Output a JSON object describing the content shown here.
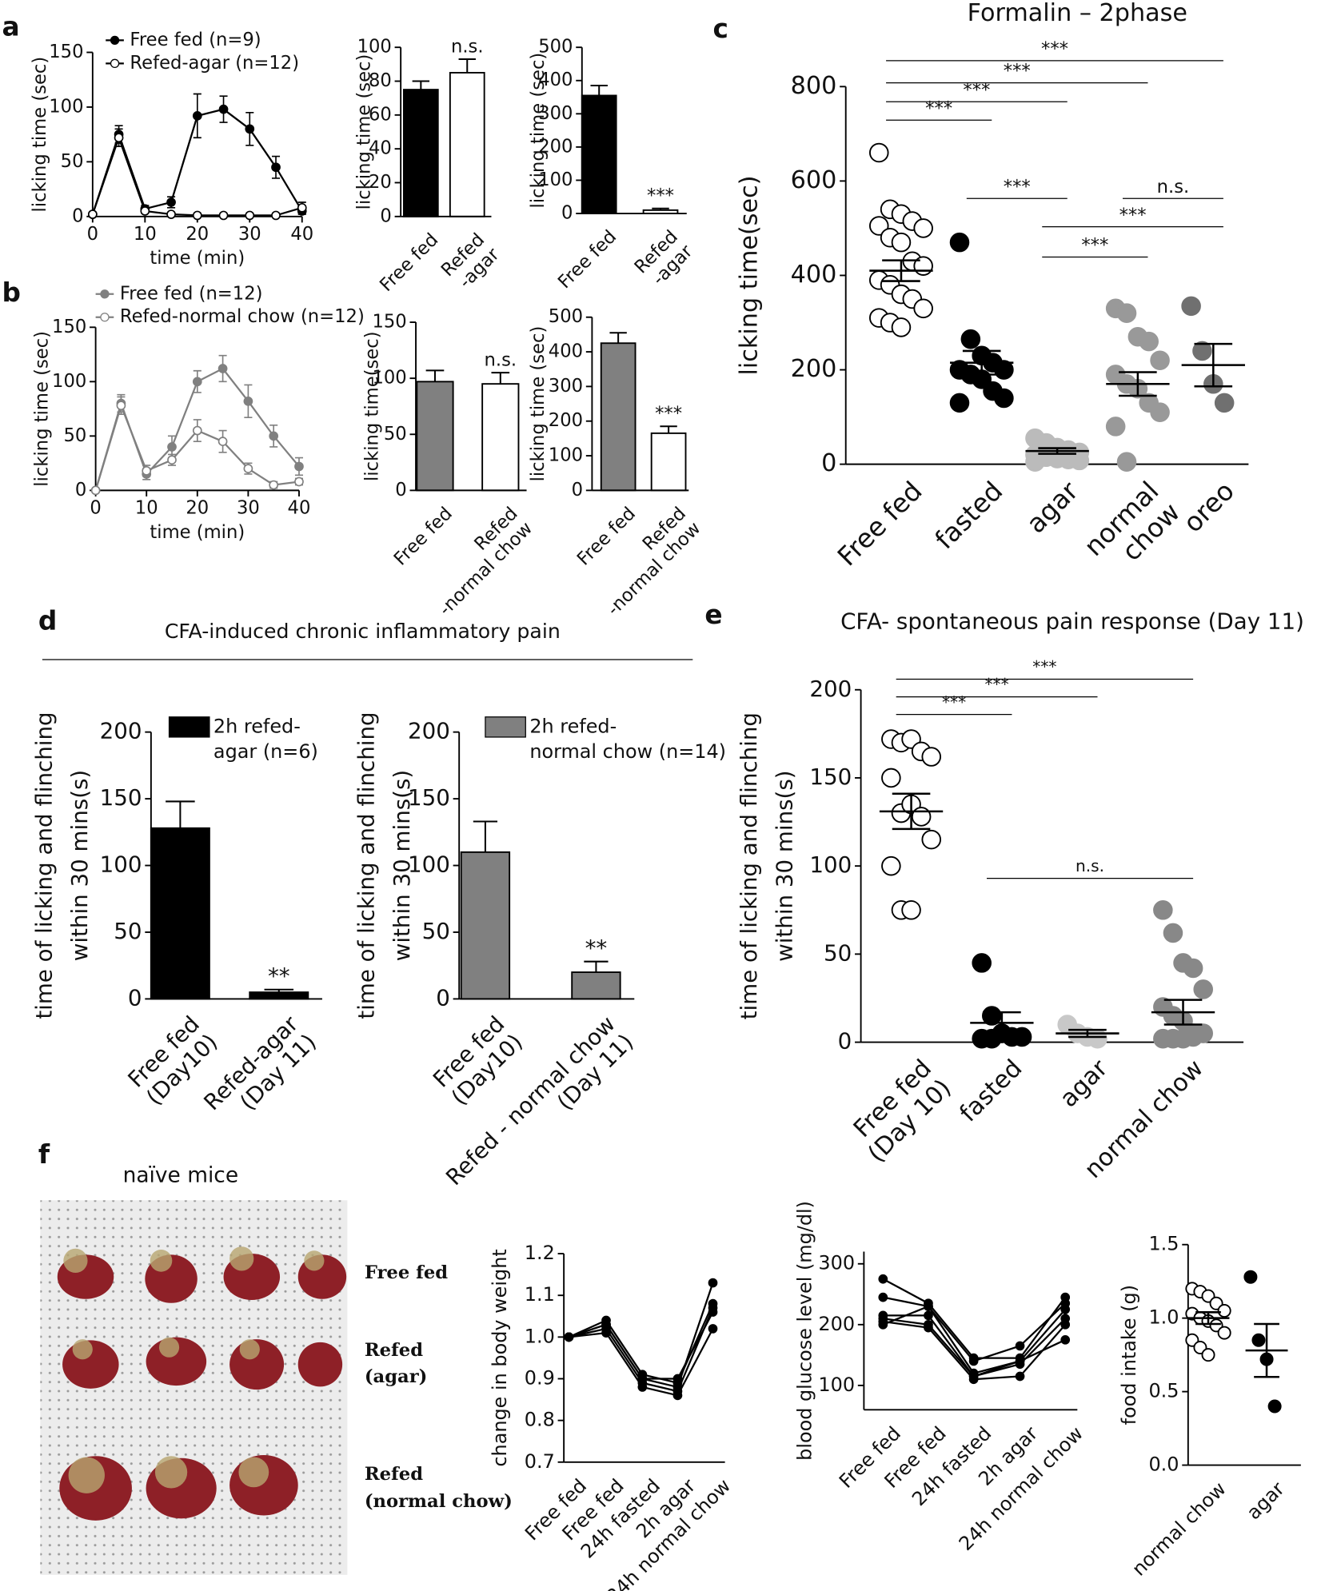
{
  "chart_data": [
    {
      "panel": "a",
      "type": "line",
      "x": [
        0,
        5,
        10,
        15,
        20,
        25,
        30,
        35,
        40
      ],
      "xlim": [
        0,
        40
      ],
      "xticks": [
        0,
        10,
        20,
        30,
        40
      ],
      "ylim": [
        0,
        150
      ],
      "yticks": [
        0,
        50,
        100,
        150
      ],
      "xlabel": "time (min)",
      "ylabel": "licking time (sec)",
      "color": "#000000",
      "series": [
        {
          "name": "Free fed (n=9)",
          "marker": "filled",
          "values": [
            2,
            75,
            7,
            13,
            92,
            98,
            80,
            45,
            5
          ],
          "errors": [
            0,
            8,
            3,
            5,
            20,
            12,
            15,
            10,
            3
          ]
        },
        {
          "name": "Refed-agar (n=12)",
          "marker": "open",
          "values": [
            2,
            72,
            5,
            2,
            1,
            1,
            1,
            1,
            8
          ],
          "errors": [
            0,
            8,
            2,
            0,
            0,
            0,
            0,
            0,
            5
          ]
        }
      ]
    },
    {
      "type": "bar",
      "categories": [
        "Free fed",
        [
          "Refed",
          "-agar"
        ]
      ],
      "values": [
        75,
        85
      ],
      "errors": [
        5,
        8
      ],
      "colors": [
        "#000000",
        "#ffffff"
      ],
      "ylim": [
        0,
        100
      ],
      "yticks": [
        0,
        20,
        40,
        60,
        80,
        100
      ],
      "ylabel": "licking time (sec)",
      "annotations": [
        {
          "text": "n.s.",
          "category": 1
        }
      ]
    },
    {
      "type": "bar",
      "categories": [
        "Free fed",
        [
          "Refed",
          "-agar"
        ]
      ],
      "values": [
        355,
        10
      ],
      "errors": [
        30,
        5
      ],
      "colors": [
        "#000000",
        "#ffffff"
      ],
      "ylim": [
        0,
        500
      ],
      "yticks": [
        0,
        100,
        200,
        300,
        400,
        500
      ],
      "ylabel": "licking time (sec)",
      "annotations": [
        {
          "text": "***",
          "category": 1
        }
      ]
    },
    {
      "panel": "b",
      "type": "line",
      "x": [
        0,
        5,
        10,
        15,
        20,
        25,
        30,
        35,
        40
      ],
      "xlim": [
        0,
        40
      ],
      "xticks": [
        0,
        10,
        20,
        30,
        40
      ],
      "ylim": [
        0,
        150
      ],
      "yticks": [
        0,
        50,
        100,
        150
      ],
      "xlabel": "time (min)",
      "ylabel": "licking time (sec)",
      "color": "#808080",
      "series": [
        {
          "name": "Free fed (n=12)",
          "marker": "filled",
          "values": [
            0,
            80,
            15,
            40,
            100,
            112,
            82,
            50,
            22
          ],
          "errors": [
            0,
            8,
            5,
            10,
            10,
            12,
            15,
            10,
            8
          ]
        },
        {
          "name": "Refed-normal chow (n=12)",
          "marker": "open",
          "values": [
            0,
            78,
            18,
            28,
            55,
            45,
            20,
            5,
            8
          ],
          "errors": [
            0,
            8,
            5,
            5,
            10,
            10,
            5,
            3,
            3
          ]
        }
      ]
    },
    {
      "type": "bar",
      "categories": [
        "Free fed",
        [
          "Refed",
          "-normal chow"
        ]
      ],
      "values": [
        97,
        95
      ],
      "errors": [
        10,
        10
      ],
      "colors": [
        "#808080",
        "#ffffff"
      ],
      "ylim": [
        0,
        150
      ],
      "yticks": [
        0,
        50,
        100,
        150
      ],
      "ylabel": "licking time(sec)",
      "annotations": [
        {
          "text": "n.s.",
          "category": 1
        }
      ]
    },
    {
      "type": "bar",
      "categories": [
        "Free fed",
        [
          "Refed",
          "-normal chow"
        ]
      ],
      "values": [
        425,
        165
      ],
      "errors": [
        30,
        20
      ],
      "colors": [
        "#808080",
        "#ffffff"
      ],
      "ylim": [
        0,
        500
      ],
      "yticks": [
        0,
        100,
        200,
        300,
        400,
        500
      ],
      "ylabel": "licking time (sec)",
      "annotations": [
        {
          "text": "***",
          "category": 1
        }
      ]
    },
    {
      "panel": "c",
      "type": "dot",
      "title": "Formalin – 2phase",
      "categories": [
        "Free fed",
        "fasted",
        "agar",
        [
          "normal",
          "chow"
        ],
        "oreo"
      ],
      "ylim": [
        0,
        800
      ],
      "yticks": [
        0,
        200,
        400,
        600,
        800
      ],
      "ylabel": "licking time(sec)",
      "marker_colors": [
        "#ffffff",
        "#000000",
        "#bbbbbb",
        "#999999",
        "#707070"
      ],
      "points": [
        [
          660,
          540,
          530,
          515,
          500,
          505,
          480,
          470,
          430,
          420,
          390,
          380,
          360,
          350,
          330,
          310,
          300,
          290
        ],
        [
          470,
          265,
          230,
          215,
          200,
          200,
          190,
          180,
          155,
          140,
          130
        ],
        [
          55,
          45,
          35,
          30,
          25,
          20,
          15,
          12,
          10,
          8,
          5
        ],
        [
          330,
          320,
          270,
          260,
          220,
          190,
          170,
          160,
          130,
          110,
          80,
          5
        ],
        [
          335,
          240,
          170,
          130
        ]
      ],
      "means": [
        410,
        215,
        28,
        170,
        210
      ],
      "sems": [
        22,
        25,
        6,
        25,
        45
      ],
      "brackets": [
        {
          "text": "***",
          "from": 0,
          "to": 4,
          "y": 855
        },
        {
          "text": "***",
          "from": 0,
          "to": 3,
          "y": 808
        },
        {
          "text": "***",
          "from": 0,
          "to": 2,
          "y": 768
        },
        {
          "text": "***",
          "from": 0,
          "to": 1,
          "y": 729
        },
        {
          "text": "***",
          "from": 1,
          "to": 2,
          "y": 563
        },
        {
          "text": "n.s.",
          "from": 3,
          "to": 4,
          "y": 563
        },
        {
          "text": "***",
          "from": 2,
          "to": 4,
          "y": 503
        },
        {
          "text": "***",
          "from": 2,
          "to": 3,
          "y": 439
        }
      ]
    },
    {
      "panel": "d",
      "title": "CFA-induced chronic inflammatory pain",
      "type": "bar",
      "categories": [
        [
          "Free fed",
          "(Day10)"
        ],
        [
          "Refed-agar",
          "(Day 11)"
        ]
      ],
      "values": [
        128,
        5
      ],
      "errors": [
        20,
        2
      ],
      "colors": [
        "#000000",
        "#000000"
      ],
      "ylim": [
        0,
        200
      ],
      "yticks": [
        0,
        50,
        100,
        150,
        200
      ],
      "ylabel": [
        "time of licking and flinching",
        "within 30 mins(s)"
      ],
      "legend": [
        "2h refed-",
        "agar (n=6)"
      ],
      "annotations": [
        {
          "text": "**",
          "category": 1
        }
      ]
    },
    {
      "type": "bar",
      "categories": [
        [
          "Free fed",
          "(Day10)"
        ],
        [
          "Refed - normal chow",
          "(Day 11)"
        ]
      ],
      "values": [
        110,
        20
      ],
      "errors": [
        23,
        8
      ],
      "colors": [
        "#808080",
        "#808080"
      ],
      "ylim": [
        0,
        200
      ],
      "yticks": [
        0,
        50,
        100,
        150,
        200
      ],
      "ylabel": [
        "time of licking and flinching",
        "within 30 mins(s)"
      ],
      "legend": [
        "2h refed-",
        "normal chow (n=14)"
      ],
      "annotations": [
        {
          "text": "**",
          "category": 1
        }
      ]
    },
    {
      "panel": "e",
      "type": "dot",
      "title": "CFA- spontaneous pain response (Day 11)",
      "categories": [
        [
          "Free fed",
          "(Day 10)"
        ],
        "fasted",
        "agar",
        "normal chow"
      ],
      "ylim": [
        0,
        200
      ],
      "yticks": [
        0,
        50,
        100,
        150,
        200
      ],
      "ylabel": [
        "time of licking and flinching",
        "within 30 mins(s)"
      ],
      "marker_colors": [
        "#ffffff",
        "#000000",
        "#c8c8c8",
        "#888888"
      ],
      "points": [
        [
          172,
          170,
          172,
          165,
          162,
          150,
          130,
          135,
          128,
          115,
          100,
          75,
          75
        ],
        [
          45,
          15,
          5,
          3,
          3,
          2,
          2
        ],
        [
          10,
          5,
          3,
          2
        ],
        [
          75,
          62,
          45,
          42,
          30,
          20,
          15,
          12,
          5,
          5,
          2,
          2,
          2,
          3
        ]
      ],
      "means": [
        131,
        11,
        5,
        17
      ],
      "sems": [
        10,
        6,
        2,
        7
      ],
      "brackets": [
        {
          "text": "***",
          "from": 0,
          "to": 3,
          "y": 206
        },
        {
          "text": "***",
          "from": 0,
          "to": 2,
          "y": 196
        },
        {
          "text": "***",
          "from": 0,
          "to": 1,
          "y": 186
        },
        {
          "text": "n.s.",
          "from": 1,
          "to": 3,
          "y": 93
        }
      ]
    },
    {
      "panel": "f",
      "type": "line",
      "categories": [
        "Free fed",
        "Free fed",
        "24h fasted",
        "2h agar",
        "24h normal chow"
      ],
      "ylim": [
        0.7,
        1.2
      ],
      "yticks": [
        0.7,
        0.8,
        0.9,
        {
          "value": 1,
          "label": "1.0"
        },
        1.1,
        1.2
      ],
      "ylabel": "change in body weight",
      "color": "#000000",
      "series": [
        {
          "marker": "filled",
          "values": [
            1.0,
            1.03,
            0.9,
            0.88,
            1.13
          ]
        },
        {
          "marker": "filled",
          "values": [
            1.0,
            1.04,
            0.91,
            0.89,
            1.08
          ]
        },
        {
          "marker": "filled",
          "values": [
            1.0,
            1.02,
            0.89,
            0.87,
            1.07
          ]
        },
        {
          "marker": "filled",
          "values": [
            1.0,
            1.01,
            0.88,
            0.86,
            1.02
          ]
        },
        {
          "marker": "filled",
          "values": [
            1.0,
            1.03,
            0.9,
            0.9,
            1.06
          ]
        }
      ]
    },
    {
      "type": "line",
      "categories": [
        "Free fed",
        "Free fed",
        "24h fasted",
        "2h agar",
        "24h normal chow"
      ],
      "ylim": [
        60,
        320
      ],
      "yticks": [
        100,
        200,
        300
      ],
      "ylabel": "blood glucose level (mg/dl)",
      "color": "#000000",
      "series": [
        {
          "marker": "filled",
          "values": [
            275,
            235,
            145,
            145,
            245
          ]
        },
        {
          "marker": "filled",
          "values": [
            245,
            230,
            140,
            165,
            235
          ]
        },
        {
          "marker": "filled",
          "values": [
            215,
            215,
            115,
            140,
            225
          ]
        },
        {
          "marker": "filled",
          "values": [
            210,
            200,
            115,
            135,
            210
          ]
        },
        {
          "marker": "filled",
          "values": [
            205,
            195,
            110,
            115,
            200
          ]
        },
        {
          "marker": "filled",
          "values": [
            200,
            230,
            120,
            140,
            175
          ]
        }
      ]
    },
    {
      "type": "dot",
      "categories": [
        "normal chow",
        "agar"
      ],
      "ylim": [
        0,
        1.5
      ],
      "yticks": [
        {
          "value": 0,
          "label": "0.0"
        },
        0.5,
        {
          "value": 1,
          "label": "1.0"
        },
        1.5
      ],
      "ylabel": "food intake (g)",
      "marker_colors": [
        "#ffffff",
        "#000000"
      ],
      "points": [
        [
          1.2,
          1.18,
          1.15,
          1.1,
          1.05,
          1.03,
          1.0,
          0.98,
          0.95,
          0.9,
          0.85,
          0.8,
          0.75
        ],
        [
          1.28,
          0.85,
          0.72,
          0.4
        ]
      ],
      "means": [
        1.0,
        0.78
      ],
      "sems": [
        0.04,
        0.18
      ],
      "brackets": []
    }
  ],
  "photo": {
    "caption": "naïve mice",
    "rows": [
      [
        "Free fed"
      ],
      [
        "Refed",
        "(agar)"
      ],
      [
        "Refed",
        "(normal chow)"
      ]
    ]
  }
}
